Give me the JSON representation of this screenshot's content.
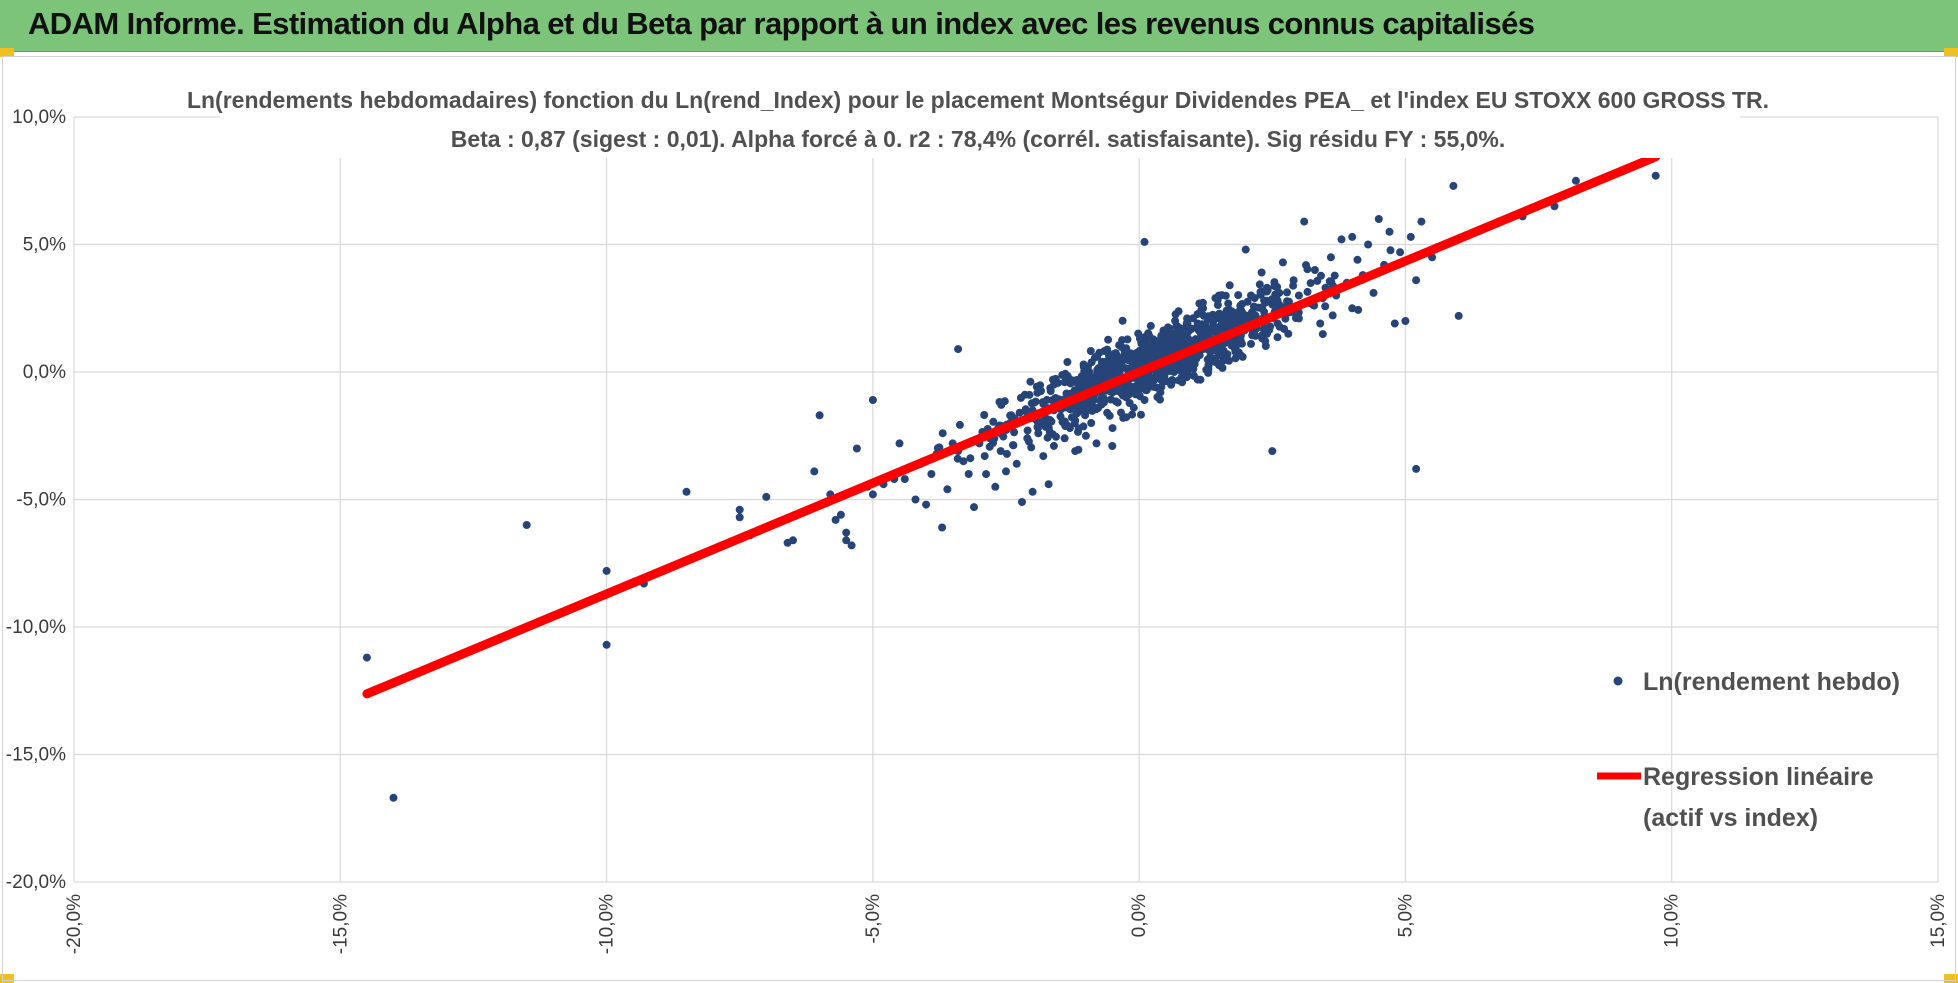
{
  "banner": {
    "title": "ADAM Informe. Estimation du Alpha et du Beta par rapport à un index avec les revenus connus capitalisés",
    "background": "#7cc47a",
    "corner_color": "#f0c020"
  },
  "chart_data": {
    "type": "scatter",
    "title_line1": "Ln(rendements hebdomadaires) fonction du Ln(rend_Index) pour le placement Montségur Dividendes PEA_ et l'index EU STOXX 600 GROSS TR.",
    "title_line2": "Beta : 0,87 (sigest : 0,01). Alpha forcé à 0. r2 : 78,4% (corrél. satisfaisante). Sig résidu FY : 55,0%.",
    "xlabel": "",
    "ylabel": "",
    "xlim": [
      -0.2,
      0.15
    ],
    "ylim": [
      -0.2,
      0.1
    ],
    "x_ticks": [
      -0.2,
      -0.15,
      -0.1,
      -0.05,
      0.0,
      0.05,
      0.1,
      0.15
    ],
    "x_tick_labels": [
      "-20,0%",
      "-15,0%",
      "-10,0%",
      "-5,0%",
      "0,0%",
      "5,0%",
      "10,0%",
      "15,0%"
    ],
    "y_ticks": [
      0.1,
      0.05,
      0.0,
      -0.05,
      -0.1,
      -0.15,
      -0.2
    ],
    "y_tick_labels": [
      "10,0%",
      "5,0%",
      "0,0%",
      "-5,0%",
      "-10,0%",
      "-15,0%",
      "-20,0%"
    ],
    "grid": true,
    "legend_position": "right",
    "beta": 0.87,
    "series": [
      {
        "name": "Ln(rendement hebdo)",
        "color": "#264478",
        "marker": "circle",
        "points": [
          [
            -0.145,
            -0.112
          ],
          [
            -0.14,
            -0.167
          ],
          [
            -0.115,
            -0.06
          ],
          [
            -0.1,
            -0.078
          ],
          [
            -0.1,
            -0.107
          ],
          [
            -0.093,
            -0.083
          ],
          [
            -0.085,
            -0.047
          ],
          [
            -0.075,
            -0.054
          ],
          [
            -0.075,
            -0.057
          ],
          [
            -0.073,
            -0.064
          ],
          [
            -0.07,
            -0.049
          ],
          [
            -0.066,
            -0.067
          ],
          [
            -0.065,
            -0.066
          ],
          [
            -0.062,
            -0.054
          ],
          [
            -0.061,
            -0.039
          ],
          [
            -0.06,
            -0.017
          ],
          [
            -0.058,
            -0.048
          ],
          [
            -0.057,
            -0.058
          ],
          [
            -0.056,
            -0.056
          ],
          [
            -0.055,
            -0.063
          ],
          [
            -0.055,
            -0.066
          ],
          [
            -0.054,
            -0.068
          ],
          [
            -0.053,
            -0.03
          ],
          [
            -0.051,
            -0.045
          ],
          [
            -0.05,
            -0.011
          ],
          [
            -0.05,
            -0.048
          ],
          [
            -0.048,
            -0.044
          ],
          [
            -0.046,
            -0.042
          ],
          [
            -0.045,
            -0.028
          ],
          [
            -0.044,
            -0.042
          ],
          [
            -0.042,
            -0.05
          ],
          [
            -0.041,
            -0.036
          ],
          [
            -0.04,
            -0.052
          ],
          [
            -0.039,
            -0.04
          ],
          [
            -0.038,
            -0.032
          ],
          [
            -0.037,
            -0.061
          ],
          [
            -0.036,
            -0.046
          ],
          [
            -0.035,
            -0.028
          ],
          [
            -0.034,
            -0.031
          ],
          [
            -0.034,
            0.009
          ],
          [
            -0.033,
            -0.035
          ],
          [
            -0.032,
            -0.04
          ],
          [
            -0.031,
            -0.053
          ],
          [
            -0.03,
            -0.028
          ],
          [
            -0.029,
            -0.033
          ],
          [
            -0.028,
            -0.026
          ],
          [
            -0.027,
            -0.045
          ],
          [
            -0.026,
            -0.031
          ],
          [
            -0.025,
            -0.022
          ],
          [
            -0.025,
            -0.039
          ],
          [
            -0.024,
            -0.017
          ],
          [
            -0.023,
            -0.036
          ],
          [
            -0.022,
            -0.051
          ],
          [
            -0.021,
            -0.026
          ],
          [
            -0.02,
            -0.015
          ],
          [
            -0.02,
            -0.047
          ],
          [
            -0.019,
            -0.022
          ],
          [
            -0.018,
            -0.033
          ],
          [
            -0.018,
            -0.02
          ],
          [
            -0.017,
            -0.044
          ],
          [
            -0.016,
            -0.015
          ],
          [
            -0.016,
            -0.029
          ],
          [
            -0.015,
            -0.012
          ],
          [
            -0.014,
            -0.026
          ],
          [
            -0.014,
            -0.004
          ],
          [
            -0.013,
            -0.022
          ],
          [
            -0.012,
            -0.019
          ],
          [
            -0.012,
            -0.031
          ],
          [
            -0.011,
            -0.008
          ],
          [
            -0.011,
            -0.015
          ],
          [
            -0.01,
            -0.025
          ],
          [
            -0.01,
            0.002
          ],
          [
            -0.009,
            -0.012
          ],
          [
            -0.009,
            -0.02
          ],
          [
            -0.008,
            -0.006
          ],
          [
            -0.008,
            -0.028
          ],
          [
            -0.007,
            -0.01
          ],
          [
            -0.007,
            0.004
          ],
          [
            -0.006,
            -0.016
          ],
          [
            -0.006,
            -0.002
          ],
          [
            -0.005,
            -0.008
          ],
          [
            -0.005,
            -0.022
          ],
          [
            -0.004,
            0.003
          ],
          [
            -0.004,
            -0.012
          ],
          [
            -0.003,
            -0.004
          ],
          [
            -0.003,
            -0.018
          ],
          [
            -0.002,
            0.006
          ],
          [
            -0.002,
            -0.009
          ],
          [
            -0.001,
            -0.001
          ],
          [
            -0.001,
            -0.014
          ],
          [
            0.0,
            0.002
          ],
          [
            0.0,
            -0.006
          ],
          [
            0.001,
            0.008
          ],
          [
            0.001,
            -0.011
          ],
          [
            0.001,
            0.051
          ],
          [
            0.002,
            0.002
          ],
          [
            0.002,
            -0.004
          ],
          [
            0.003,
            0.011
          ],
          [
            0.003,
            -0.002
          ],
          [
            0.004,
            0.006
          ],
          [
            0.004,
            -0.008
          ],
          [
            0.005,
            0.014
          ],
          [
            0.005,
            0.001
          ],
          [
            0.006,
            0.008
          ],
          [
            0.006,
            -0.005
          ],
          [
            0.007,
            0.018
          ],
          [
            0.007,
            0.004
          ],
          [
            0.008,
            0.01
          ],
          [
            0.008,
            -0.002
          ],
          [
            0.009,
            0.015
          ],
          [
            0.009,
            0.021
          ],
          [
            0.01,
            0.006
          ],
          [
            0.01,
            0.012
          ],
          [
            0.011,
            -0.003
          ],
          [
            0.011,
            0.019
          ],
          [
            0.012,
            0.009
          ],
          [
            0.012,
            0.025
          ],
          [
            0.013,
            0.014
          ],
          [
            0.013,
            0.002
          ],
          [
            0.014,
            0.021
          ],
          [
            0.014,
            0.011
          ],
          [
            0.015,
            0.03
          ],
          [
            0.015,
            0.016
          ],
          [
            0.016,
            0.007
          ],
          [
            0.016,
            0.022
          ],
          [
            0.017,
            0.013
          ],
          [
            0.017,
            0.034
          ],
          [
            0.018,
            0.019
          ],
          [
            0.018,
            0.009
          ],
          [
            0.019,
            0.026
          ],
          [
            0.019,
            0.015
          ],
          [
            0.02,
            0.048
          ],
          [
            0.02,
            0.021
          ],
          [
            0.021,
            0.011
          ],
          [
            0.021,
            0.03
          ],
          [
            0.022,
            0.018
          ],
          [
            0.023,
            0.025
          ],
          [
            0.023,
            0.039
          ],
          [
            0.024,
            0.015
          ],
          [
            0.024,
            0.033
          ],
          [
            0.025,
            0.022
          ],
          [
            0.025,
            -0.031
          ],
          [
            0.026,
            0.028
          ],
          [
            0.026,
            0.019
          ],
          [
            0.027,
            0.043
          ],
          [
            0.028,
            0.025
          ],
          [
            0.028,
            0.015
          ],
          [
            0.029,
            0.036
          ],
          [
            0.03,
            0.03
          ],
          [
            0.03,
            0.021
          ],
          [
            0.031,
            0.059
          ],
          [
            0.032,
            0.027
          ],
          [
            0.033,
            0.04
          ],
          [
            0.034,
            0.019
          ],
          [
            0.035,
            0.033
          ],
          [
            0.036,
            0.045
          ],
          [
            0.037,
            0.03
          ],
          [
            0.038,
            0.052
          ],
          [
            0.039,
            0.035
          ],
          [
            0.04,
            0.025
          ],
          [
            0.04,
            0.053
          ],
          [
            0.041,
            0.044
          ],
          [
            0.042,
            0.038
          ],
          [
            0.043,
            0.05
          ],
          [
            0.044,
            0.031
          ],
          [
            0.045,
            0.06
          ],
          [
            0.046,
            0.042
          ],
          [
            0.047,
            0.055
          ],
          [
            0.048,
            0.019
          ],
          [
            0.049,
            0.047
          ],
          [
            0.05,
            0.02
          ],
          [
            0.051,
            0.053
          ],
          [
            0.052,
            -0.038
          ],
          [
            0.052,
            0.036
          ],
          [
            0.053,
            0.059
          ],
          [
            0.055,
            0.045
          ],
          [
            0.056,
            0.049
          ],
          [
            0.059,
            0.073
          ],
          [
            0.06,
            0.022
          ],
          [
            0.072,
            0.061
          ],
          [
            0.078,
            0.065
          ],
          [
            0.082,
            0.075
          ],
          [
            0.097,
            0.077
          ]
        ],
        "dense_cloud": {
          "x_center": 0.003,
          "y_center": 0.004,
          "x_sd": 0.014,
          "y_sd": 0.013,
          "count": 900
        }
      },
      {
        "name": "Regression linéaire (actif vs index)",
        "legend_line1": "Regression linéaire",
        "legend_line2": "(actif vs index)",
        "color": "#ff0000",
        "type": "line",
        "x": [
          -0.145,
          0.097
        ],
        "y": [
          -0.1262,
          0.0844
        ]
      }
    ]
  }
}
